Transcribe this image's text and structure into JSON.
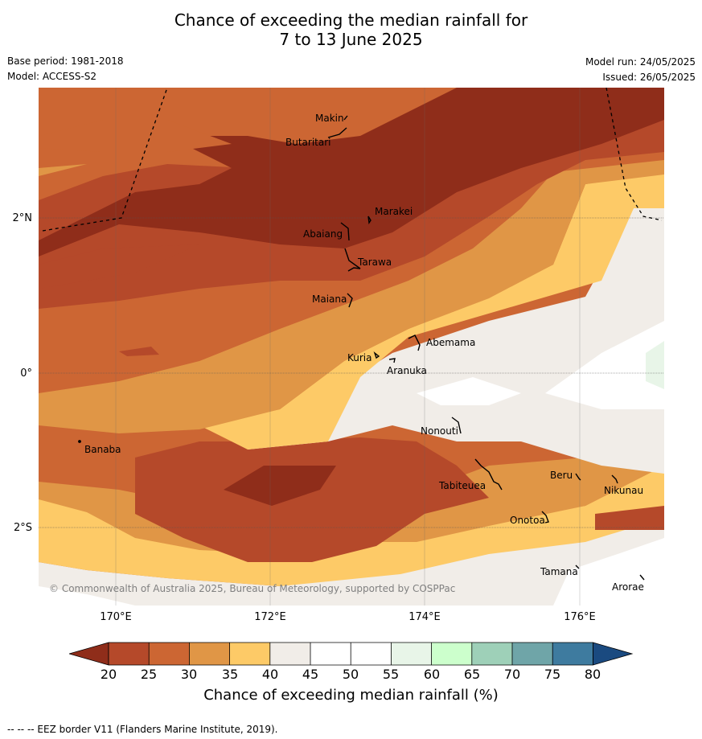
{
  "title_line1": "Chance of exceeding the median rainfall for",
  "title_line2": "7 to 13 June 2025",
  "base_period": "Base period: 1981-2018",
  "model": "Model: ACCESS-S2",
  "model_run": "Model run: 24/05/2025",
  "issued": "Issued: 26/05/2025",
  "lat_labels": [
    "2°N",
    "0°",
    "2°S"
  ],
  "lon_labels": [
    "170°E",
    "172°E",
    "174°E",
    "176°E"
  ],
  "places": {
    "makin": "Makin",
    "butaritari": "Butaritari",
    "marakei": "Marakei",
    "abaiang": "Abaiang",
    "tarawa": "Tarawa",
    "maiana": "Maiana",
    "abemama": "Abemama",
    "kuria": "Kuria",
    "aranuka": "Aranuka",
    "nonouti": "Nonouti",
    "banaba": "Banaba",
    "beru": "Beru",
    "nikunau": "Nikunau",
    "tabiteuea": "Tabiteuea",
    "onotoa": "Onotoa",
    "tamana": "Tamana",
    "arorae": "Arorae"
  },
  "copyright": "© Commonwealth of Australia 2025, Bureau of Meteorology, supported by COSPPac",
  "colorbar": {
    "ticks": [
      "20",
      "25",
      "30",
      "35",
      "40",
      "45",
      "50",
      "55",
      "60",
      "65",
      "70",
      "75",
      "80"
    ],
    "colors": {
      "under": "#8f2d1a",
      "b20_25": "#b5492a",
      "b25_30": "#cc6633",
      "b30_35": "#e09646",
      "b35_40": "#fdca67",
      "b40_45": "#f1ede8",
      "b45_50": "#ffffff",
      "b50_55": "#ffffff",
      "b55_60": "#e8f5e8",
      "b60_65": "#ccffcc",
      "b65_70": "#9ed0b8",
      "b70_75": "#6fa5a8",
      "b75_80": "#3e7b9f",
      "over": "#1a4a80"
    },
    "label": "Chance of exceeding median rainfall (%)"
  },
  "footer": "--  --  -- EEZ border V11 (Flanders Marine Institute, 2019)."
}
